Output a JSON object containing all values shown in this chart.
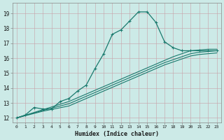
{
  "title": "",
  "xlabel": "Humidex (Indice chaleur)",
  "ylabel": "",
  "bg_color": "#cceae7",
  "grid_color": "#e8f5f3",
  "line_color": "#1a7a6e",
  "xlim": [
    -0.5,
    23.5
  ],
  "ylim": [
    11.7,
    19.7
  ],
  "yticks": [
    12,
    13,
    14,
    15,
    16,
    17,
    18,
    19
  ],
  "xticks": [
    0,
    1,
    2,
    3,
    4,
    5,
    6,
    7,
    8,
    9,
    10,
    11,
    12,
    13,
    14,
    15,
    16,
    17,
    18,
    19,
    20,
    21,
    22,
    23
  ],
  "lines": [
    {
      "x": [
        0,
        1,
        2,
        3,
        4,
        5,
        6,
        7,
        8,
        9,
        10,
        11,
        12,
        13,
        14,
        15,
        16,
        17,
        18,
        19,
        20,
        21,
        22,
        23
      ],
      "y": [
        12.0,
        12.2,
        12.7,
        12.6,
        12.6,
        13.1,
        13.3,
        13.8,
        14.2,
        15.3,
        16.3,
        17.6,
        17.9,
        18.5,
        19.1,
        19.1,
        18.4,
        17.1,
        16.7,
        16.5,
        16.5,
        16.5,
        16.5,
        16.5
      ],
      "marker": true
    },
    {
      "x": [
        0,
        3,
        6,
        7,
        8,
        9,
        10,
        11,
        12,
        13,
        14,
        15,
        16,
        17,
        18,
        19,
        20,
        21,
        22,
        23
      ],
      "y": [
        12.0,
        12.55,
        13.1,
        13.35,
        13.6,
        13.85,
        14.1,
        14.35,
        14.6,
        14.85,
        15.1,
        15.35,
        15.6,
        15.85,
        16.1,
        16.3,
        16.5,
        16.55,
        16.6,
        16.6
      ],
      "marker": false
    },
    {
      "x": [
        0,
        3,
        6,
        7,
        8,
        9,
        10,
        11,
        12,
        13,
        14,
        15,
        16,
        17,
        18,
        19,
        20,
        21,
        22,
        23
      ],
      "y": [
        12.0,
        12.5,
        12.95,
        13.2,
        13.45,
        13.7,
        13.95,
        14.2,
        14.45,
        14.7,
        14.95,
        15.2,
        15.45,
        15.7,
        15.9,
        16.1,
        16.3,
        16.4,
        16.45,
        16.5
      ],
      "marker": false
    },
    {
      "x": [
        0,
        3,
        6,
        7,
        8,
        9,
        10,
        11,
        12,
        13,
        14,
        15,
        16,
        17,
        18,
        19,
        20,
        21,
        22,
        23
      ],
      "y": [
        12.0,
        12.45,
        12.8,
        13.05,
        13.3,
        13.55,
        13.8,
        14.05,
        14.3,
        14.55,
        14.8,
        15.05,
        15.3,
        15.55,
        15.75,
        15.95,
        16.15,
        16.25,
        16.3,
        16.35
      ],
      "marker": false
    }
  ]
}
